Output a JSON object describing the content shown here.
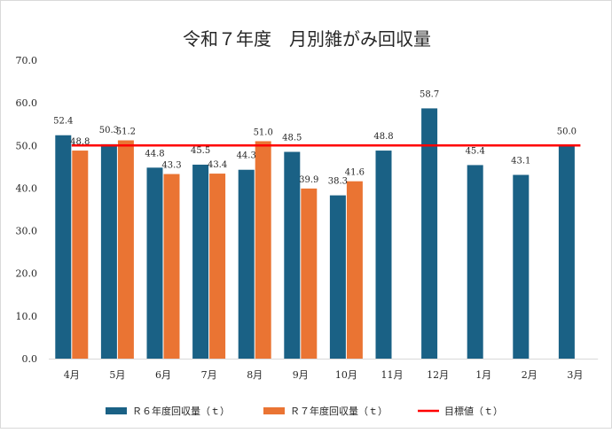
{
  "chart_data": {
    "type": "bar",
    "title": "令和７年度　月別雑がみ回収量",
    "categories": [
      "4月",
      "5月",
      "6月",
      "7月",
      "8月",
      "9月",
      "10月",
      "11月",
      "12月",
      "1月",
      "2月",
      "3月"
    ],
    "series": [
      {
        "name": "Ｒ６年度回収量（ｔ）",
        "color": "#1a6185",
        "values": [
          52.4,
          50.3,
          44.8,
          45.5,
          44.3,
          48.5,
          38.3,
          48.8,
          58.7,
          45.4,
          43.1,
          50.0
        ]
      },
      {
        "name": "Ｒ７年度回収量（ｔ）",
        "color": "#ea7433",
        "values": [
          48.8,
          51.2,
          43.3,
          43.4,
          51.0,
          39.9,
          41.6,
          null,
          null,
          null,
          null,
          null
        ]
      }
    ],
    "target_line": {
      "name": "目標値（ｔ）",
      "value": 50.0,
      "color": "#ff0000"
    },
    "ylim": [
      0,
      70
    ],
    "yticks": [
      "0.0",
      "10.0",
      "20.0",
      "30.0",
      "40.0",
      "50.0",
      "60.0",
      "70.0"
    ],
    "grid": false,
    "legend": "bottom"
  }
}
